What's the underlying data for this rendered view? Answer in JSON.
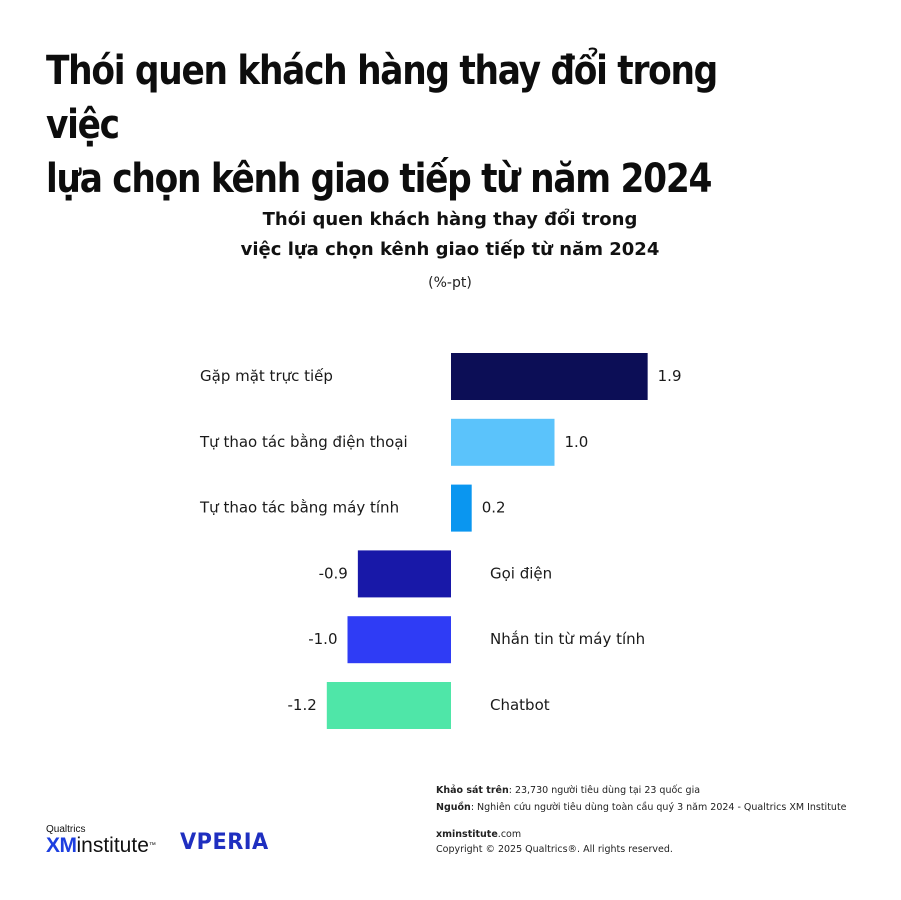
{
  "headline": {
    "line1": "Thói quen khách hàng thay đổi trong việc",
    "line2": "lựa chọn kênh giao tiếp từ năm 2024"
  },
  "chart_data": {
    "type": "bar",
    "orientation": "horizontal",
    "title_line1": "Thói quen khách hàng thay đổi trong",
    "title_line2": "việc lựa chọn kênh giao tiếp từ năm 2024",
    "unit": "(%-pt)",
    "categories": [
      "Gặp mặt trực tiếp",
      "Tự thao tác bằng điện thoại",
      "Tự thao tác bằng máy tính",
      "Gọi điện",
      "Nhắn tin từ máy tính",
      "Chatbot"
    ],
    "values": [
      1.9,
      1.0,
      0.2,
      -0.9,
      -1.0,
      -1.2
    ],
    "value_labels": [
      "1.9",
      "1.0",
      "0.2",
      "-0.9",
      "-1.0",
      "-1.2"
    ],
    "colors": [
      "#0c0e56",
      "#5bc3fb",
      "#0a96f0",
      "#1818a8",
      "#2f3cf5",
      "#4fe6a8"
    ],
    "grid": false,
    "legend": "none"
  },
  "footer": {
    "survey_label": "Khảo sát trên",
    "survey_text": ": 23,730 người tiêu dùng tại 23 quốc gia",
    "source_label": "Nguồn",
    "source_text": ": Nghiên cứu người tiêu dùng toàn cầu quý 3 năm 2024 - Qualtrics XM Institute",
    "site_bold": "xminstitute",
    "site_rest": ".com",
    "copyright": "Copyright © 2025 Qualtrics®. All rights reserved."
  },
  "logos": {
    "qualtrics_small": "Qualtrics",
    "xm": "XM",
    "institute": "institute",
    "tm": "™",
    "vperia": "VPERIA"
  }
}
